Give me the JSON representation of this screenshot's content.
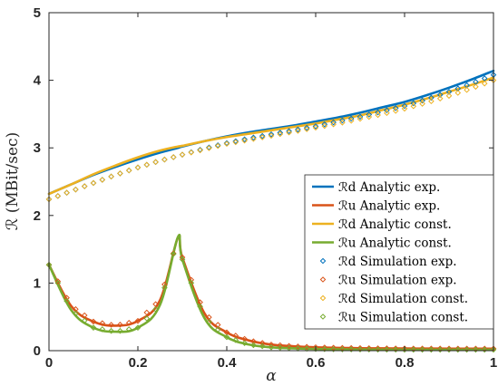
{
  "chart_data": {
    "type": "line",
    "xlabel": "α",
    "ylabel": "ℛ (MBit/sec)",
    "xlim": [
      0,
      1
    ],
    "ylim": [
      0,
      5
    ],
    "xticks": [
      "0",
      "0.2",
      "0.4",
      "0.6",
      "0.8",
      "1"
    ],
    "yticks": [
      "0",
      "1",
      "2",
      "3",
      "4",
      "5"
    ],
    "grid": false,
    "legend_position": "bottom-right",
    "x": [
      0,
      0.05,
      0.1,
      0.15,
      0.2,
      0.25,
      0.29,
      0.3,
      0.35,
      0.4,
      0.45,
      0.5,
      0.55,
      0.6,
      0.65,
      0.7,
      0.75,
      0.8,
      0.85,
      0.9,
      0.95,
      1
    ],
    "series": [
      {
        "name": "ℛd Analytic exp.",
        "style": "line",
        "color": "#0072BD",
        "values": [
          2.32,
          2.46,
          2.6,
          2.72,
          2.83,
          2.93,
          3.0,
          3.02,
          3.1,
          3.17,
          3.23,
          3.28,
          3.33,
          3.39,
          3.45,
          3.52,
          3.6,
          3.68,
          3.78,
          3.89,
          4.01,
          4.14
        ]
      },
      {
        "name": "ℛu Analytic exp.",
        "style": "line",
        "color": "#D95319",
        "values": [
          1.27,
          0.66,
          0.43,
          0.37,
          0.44,
          0.75,
          1.67,
          1.38,
          0.55,
          0.27,
          0.15,
          0.09,
          0.065,
          0.05,
          0.042,
          0.037,
          0.034,
          0.032,
          0.031,
          0.03,
          0.03,
          0.03
        ]
      },
      {
        "name": "ℛd Analytic const.",
        "style": "line",
        "color": "#EDB120",
        "values": [
          2.32,
          2.46,
          2.61,
          2.74,
          2.86,
          2.96,
          3.02,
          3.03,
          3.1,
          3.16,
          3.21,
          3.26,
          3.31,
          3.36,
          3.42,
          3.48,
          3.56,
          3.64,
          3.73,
          3.83,
          3.93,
          4.04
        ]
      },
      {
        "name": "ℛu Analytic const.",
        "style": "line",
        "color": "#77AC30",
        "values": [
          1.27,
          0.6,
          0.34,
          0.28,
          0.34,
          0.68,
          1.68,
          1.35,
          0.48,
          0.2,
          0.09,
          0.05,
          0.035,
          0.025,
          0.02,
          0.018,
          0.016,
          0.015,
          0.015,
          0.015,
          0.015,
          0.015
        ]
      },
      {
        "name": "ℛd Simulation exp.",
        "style": "markers",
        "color": "#0072BD",
        "values": [
          2.24,
          2.36,
          2.48,
          2.6,
          2.71,
          2.81,
          2.88,
          2.9,
          2.99,
          3.07,
          3.14,
          3.2,
          3.26,
          3.32,
          3.39,
          3.46,
          3.54,
          3.62,
          3.72,
          3.83,
          3.95,
          4.08
        ]
      },
      {
        "name": "ℛu Simulation exp.",
        "style": "markers",
        "color": "#D95319",
        "values": [
          1.27,
          0.66,
          0.43,
          0.37,
          0.44,
          0.75,
          1.67,
          1.38,
          0.55,
          0.27,
          0.15,
          0.09,
          0.065,
          0.05,
          0.042,
          0.037,
          0.034,
          0.032,
          0.031,
          0.03,
          0.03,
          0.03
        ]
      },
      {
        "name": "ℛd Simulation const.",
        "style": "markers",
        "color": "#EDB120",
        "values": [
          2.24,
          2.36,
          2.48,
          2.6,
          2.71,
          2.81,
          2.88,
          2.9,
          2.98,
          3.06,
          3.12,
          3.18,
          3.24,
          3.3,
          3.36,
          3.43,
          3.5,
          3.58,
          3.67,
          3.77,
          3.88,
          4.0
        ]
      },
      {
        "name": "ℛu Simulation const.",
        "style": "markers",
        "color": "#77AC30",
        "values": [
          1.27,
          0.6,
          0.34,
          0.28,
          0.34,
          0.68,
          1.68,
          1.35,
          0.48,
          0.2,
          0.09,
          0.05,
          0.035,
          0.025,
          0.02,
          0.018,
          0.016,
          0.015,
          0.015,
          0.015,
          0.015,
          0.015
        ]
      }
    ]
  }
}
